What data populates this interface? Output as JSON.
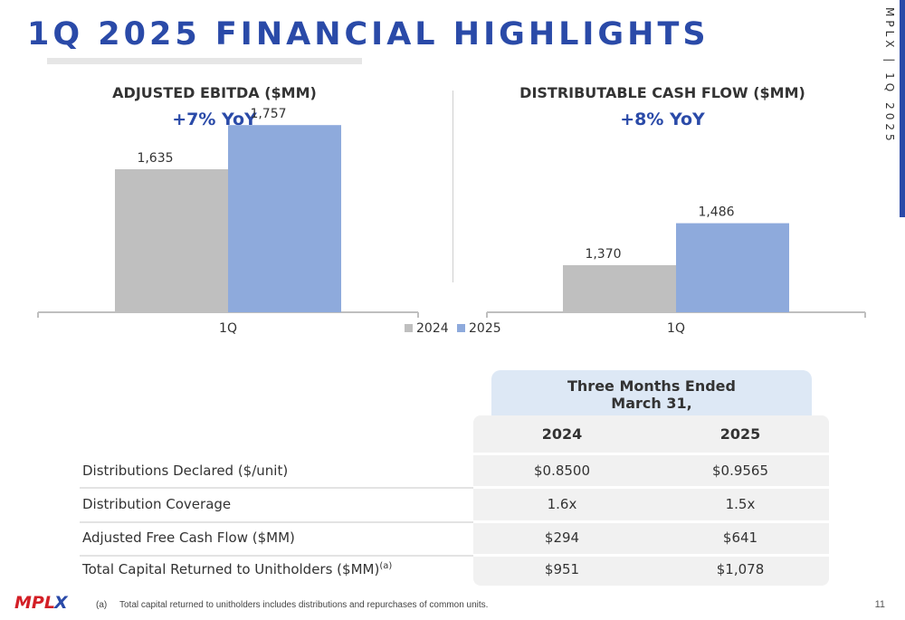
{
  "slide": {
    "title": "1Q 2025 FINANCIAL HIGHLIGHTS",
    "side_label": "MPLX | 1Q 2025",
    "page_number": "11",
    "accent_color": "#2a4aa8"
  },
  "chart_data": [
    {
      "type": "bar",
      "title": "ADJUSTED EBITDA ($MM)",
      "subtitle": "+7% YoY",
      "categories": [
        "1Q"
      ],
      "series": [
        {
          "name": "2024",
          "values": [
            1635
          ],
          "labels": [
            "1,635"
          ],
          "color": "#bfbfbf"
        },
        {
          "name": "2025",
          "values": [
            1757
          ],
          "labels": [
            "1,757"
          ],
          "color": "#8eaadc"
        }
      ],
      "xlabel": "",
      "ylabel": "",
      "grid": false
    },
    {
      "type": "bar",
      "title": "DISTRIBUTABLE CASH FLOW ($MM)",
      "subtitle": "+8% YoY",
      "categories": [
        "1Q"
      ],
      "series": [
        {
          "name": "2024",
          "values": [
            1370
          ],
          "labels": [
            "1,370"
          ],
          "color": "#bfbfbf"
        },
        {
          "name": "2025",
          "values": [
            1486
          ],
          "labels": [
            "1,486"
          ],
          "color": "#8eaadc"
        }
      ],
      "xlabel": "",
      "ylabel": "",
      "grid": false
    }
  ],
  "legend": {
    "items": [
      "2024",
      "2025"
    ],
    "placement": "bottom-center"
  },
  "table": {
    "header_line1": "Three Months Ended",
    "header_line2": "March 31,",
    "columns": [
      "2024",
      "2025"
    ],
    "rows": [
      {
        "label": "Distributions Declared ($/unit)",
        "sup": "",
        "values": [
          "$0.8500",
          "$0.9565"
        ]
      },
      {
        "label": "Distribution Coverage",
        "sup": "",
        "values": [
          "1.6x",
          "1.5x"
        ]
      },
      {
        "label": "Adjusted Free Cash Flow ($MM)",
        "sup": "",
        "values": [
          "$294",
          "$641"
        ]
      },
      {
        "label": "Total Capital Returned to Unitholders ($MM)",
        "sup": "(a)",
        "values": [
          "$951",
          "$1,078"
        ]
      }
    ]
  },
  "footnote": {
    "marker": "(a)",
    "text": "Total capital returned to unitholders includes distributions and repurchases of common units."
  },
  "logo": {
    "text": "MPLX",
    "icon": "mplx-logo",
    "color_red": "#d31f26",
    "color_blue": "#2a4aa8"
  }
}
